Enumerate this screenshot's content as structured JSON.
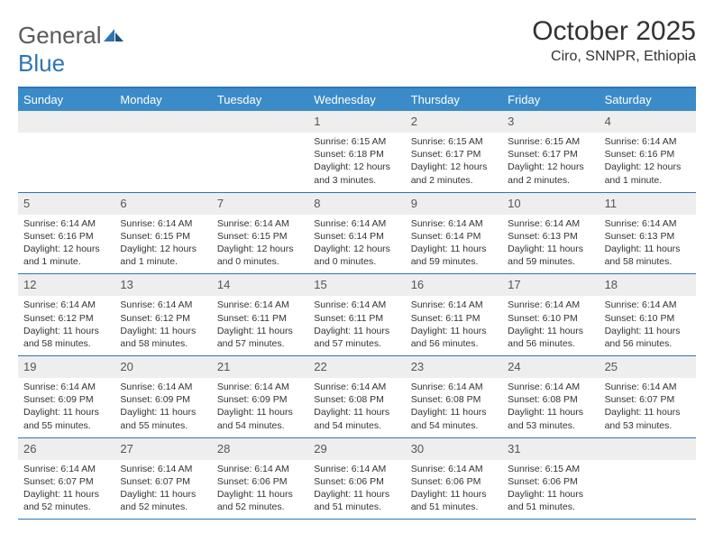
{
  "brand": {
    "name_a": "General",
    "name_b": "Blue"
  },
  "title": {
    "month": "October 2025",
    "location": "Ciro, SNNPR, Ethiopia"
  },
  "colors": {
    "header_bar": "#3b8bc8",
    "border": "#2e75b6",
    "daynum_bg": "#eeeeee",
    "text": "#333333",
    "logo_gray": "#5a5a5a",
    "logo_blue": "#2e75b6",
    "white": "#ffffff"
  },
  "typography": {
    "month_fontsize": 30,
    "location_fontsize": 16,
    "dayhead_fontsize": 13,
    "daynum_fontsize": 13,
    "info_fontsize": 10.5
  },
  "day_headers": [
    "Sunday",
    "Monday",
    "Tuesday",
    "Wednesday",
    "Thursday",
    "Friday",
    "Saturday"
  ],
  "weeks": [
    [
      {
        "n": "",
        "sr": "",
        "ss": "",
        "dl": ""
      },
      {
        "n": "",
        "sr": "",
        "ss": "",
        "dl": ""
      },
      {
        "n": "",
        "sr": "",
        "ss": "",
        "dl": ""
      },
      {
        "n": "1",
        "sr": "Sunrise: 6:15 AM",
        "ss": "Sunset: 6:18 PM",
        "dl": "Daylight: 12 hours and 3 minutes."
      },
      {
        "n": "2",
        "sr": "Sunrise: 6:15 AM",
        "ss": "Sunset: 6:17 PM",
        "dl": "Daylight: 12 hours and 2 minutes."
      },
      {
        "n": "3",
        "sr": "Sunrise: 6:15 AM",
        "ss": "Sunset: 6:17 PM",
        "dl": "Daylight: 12 hours and 2 minutes."
      },
      {
        "n": "4",
        "sr": "Sunrise: 6:14 AM",
        "ss": "Sunset: 6:16 PM",
        "dl": "Daylight: 12 hours and 1 minute."
      }
    ],
    [
      {
        "n": "5",
        "sr": "Sunrise: 6:14 AM",
        "ss": "Sunset: 6:16 PM",
        "dl": "Daylight: 12 hours and 1 minute."
      },
      {
        "n": "6",
        "sr": "Sunrise: 6:14 AM",
        "ss": "Sunset: 6:15 PM",
        "dl": "Daylight: 12 hours and 1 minute."
      },
      {
        "n": "7",
        "sr": "Sunrise: 6:14 AM",
        "ss": "Sunset: 6:15 PM",
        "dl": "Daylight: 12 hours and 0 minutes."
      },
      {
        "n": "8",
        "sr": "Sunrise: 6:14 AM",
        "ss": "Sunset: 6:14 PM",
        "dl": "Daylight: 12 hours and 0 minutes."
      },
      {
        "n": "9",
        "sr": "Sunrise: 6:14 AM",
        "ss": "Sunset: 6:14 PM",
        "dl": "Daylight: 11 hours and 59 minutes."
      },
      {
        "n": "10",
        "sr": "Sunrise: 6:14 AM",
        "ss": "Sunset: 6:13 PM",
        "dl": "Daylight: 11 hours and 59 minutes."
      },
      {
        "n": "11",
        "sr": "Sunrise: 6:14 AM",
        "ss": "Sunset: 6:13 PM",
        "dl": "Daylight: 11 hours and 58 minutes."
      }
    ],
    [
      {
        "n": "12",
        "sr": "Sunrise: 6:14 AM",
        "ss": "Sunset: 6:12 PM",
        "dl": "Daylight: 11 hours and 58 minutes."
      },
      {
        "n": "13",
        "sr": "Sunrise: 6:14 AM",
        "ss": "Sunset: 6:12 PM",
        "dl": "Daylight: 11 hours and 58 minutes."
      },
      {
        "n": "14",
        "sr": "Sunrise: 6:14 AM",
        "ss": "Sunset: 6:11 PM",
        "dl": "Daylight: 11 hours and 57 minutes."
      },
      {
        "n": "15",
        "sr": "Sunrise: 6:14 AM",
        "ss": "Sunset: 6:11 PM",
        "dl": "Daylight: 11 hours and 57 minutes."
      },
      {
        "n": "16",
        "sr": "Sunrise: 6:14 AM",
        "ss": "Sunset: 6:11 PM",
        "dl": "Daylight: 11 hours and 56 minutes."
      },
      {
        "n": "17",
        "sr": "Sunrise: 6:14 AM",
        "ss": "Sunset: 6:10 PM",
        "dl": "Daylight: 11 hours and 56 minutes."
      },
      {
        "n": "18",
        "sr": "Sunrise: 6:14 AM",
        "ss": "Sunset: 6:10 PM",
        "dl": "Daylight: 11 hours and 56 minutes."
      }
    ],
    [
      {
        "n": "19",
        "sr": "Sunrise: 6:14 AM",
        "ss": "Sunset: 6:09 PM",
        "dl": "Daylight: 11 hours and 55 minutes."
      },
      {
        "n": "20",
        "sr": "Sunrise: 6:14 AM",
        "ss": "Sunset: 6:09 PM",
        "dl": "Daylight: 11 hours and 55 minutes."
      },
      {
        "n": "21",
        "sr": "Sunrise: 6:14 AM",
        "ss": "Sunset: 6:09 PM",
        "dl": "Daylight: 11 hours and 54 minutes."
      },
      {
        "n": "22",
        "sr": "Sunrise: 6:14 AM",
        "ss": "Sunset: 6:08 PM",
        "dl": "Daylight: 11 hours and 54 minutes."
      },
      {
        "n": "23",
        "sr": "Sunrise: 6:14 AM",
        "ss": "Sunset: 6:08 PM",
        "dl": "Daylight: 11 hours and 54 minutes."
      },
      {
        "n": "24",
        "sr": "Sunrise: 6:14 AM",
        "ss": "Sunset: 6:08 PM",
        "dl": "Daylight: 11 hours and 53 minutes."
      },
      {
        "n": "25",
        "sr": "Sunrise: 6:14 AM",
        "ss": "Sunset: 6:07 PM",
        "dl": "Daylight: 11 hours and 53 minutes."
      }
    ],
    [
      {
        "n": "26",
        "sr": "Sunrise: 6:14 AM",
        "ss": "Sunset: 6:07 PM",
        "dl": "Daylight: 11 hours and 52 minutes."
      },
      {
        "n": "27",
        "sr": "Sunrise: 6:14 AM",
        "ss": "Sunset: 6:07 PM",
        "dl": "Daylight: 11 hours and 52 minutes."
      },
      {
        "n": "28",
        "sr": "Sunrise: 6:14 AM",
        "ss": "Sunset: 6:06 PM",
        "dl": "Daylight: 11 hours and 52 minutes."
      },
      {
        "n": "29",
        "sr": "Sunrise: 6:14 AM",
        "ss": "Sunset: 6:06 PM",
        "dl": "Daylight: 11 hours and 51 minutes."
      },
      {
        "n": "30",
        "sr": "Sunrise: 6:14 AM",
        "ss": "Sunset: 6:06 PM",
        "dl": "Daylight: 11 hours and 51 minutes."
      },
      {
        "n": "31",
        "sr": "Sunrise: 6:15 AM",
        "ss": "Sunset: 6:06 PM",
        "dl": "Daylight: 11 hours and 51 minutes."
      },
      {
        "n": "",
        "sr": "",
        "ss": "",
        "dl": ""
      }
    ]
  ]
}
